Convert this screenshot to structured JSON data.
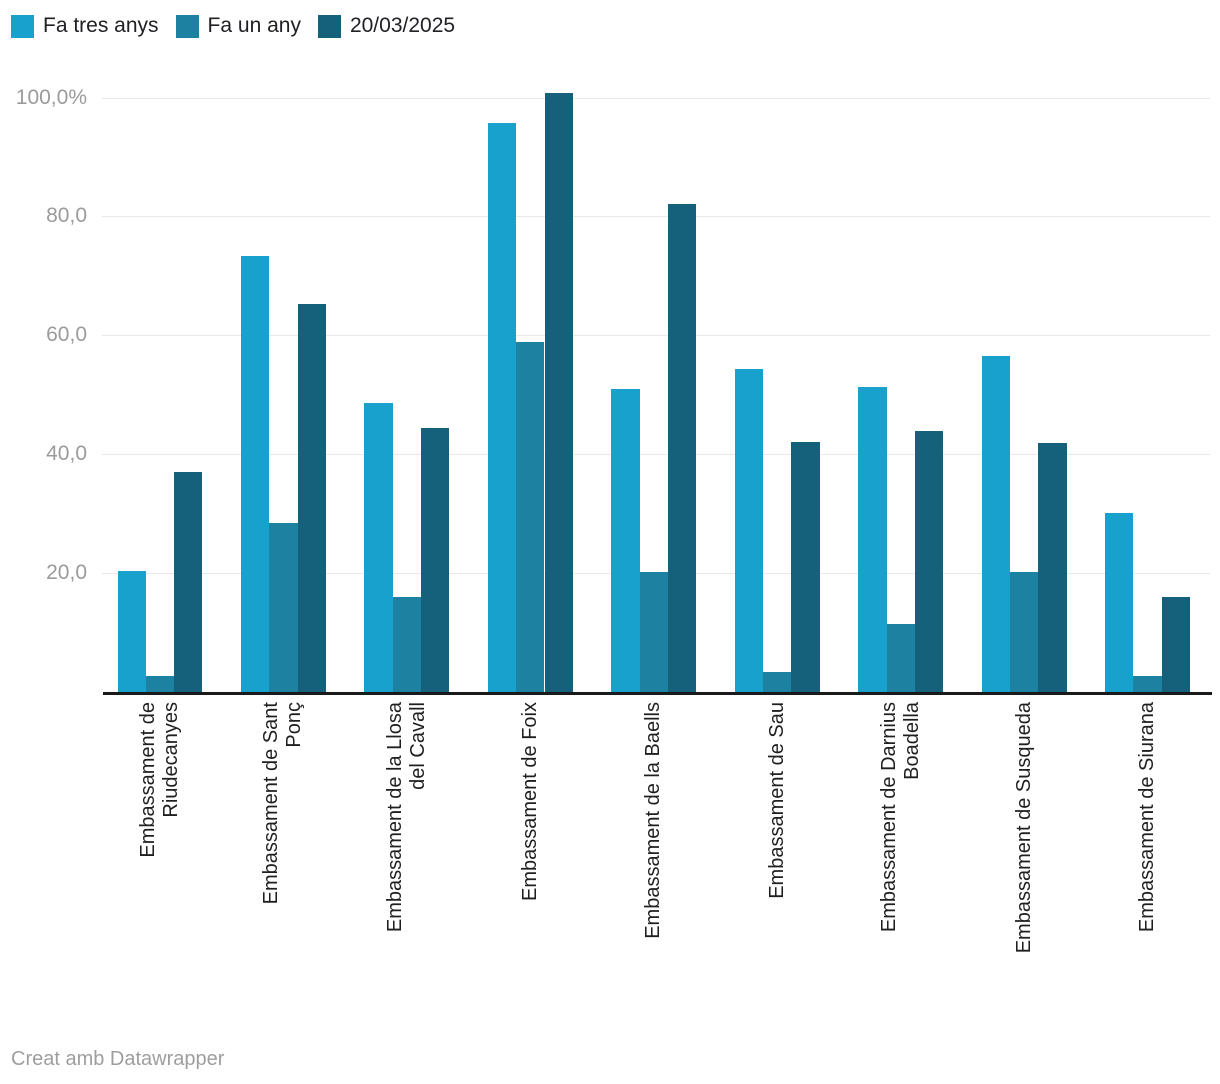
{
  "legend": {
    "items": [
      {
        "label": "Fa tres anys",
        "color": "#18a1cd"
      },
      {
        "label": "Fa un any",
        "color": "#1d81a2"
      },
      {
        "label": "20/03/2025",
        "color": "#15607a"
      }
    ]
  },
  "y_axis": {
    "ticks": [
      {
        "label": "100,0%",
        "value": 100
      },
      {
        "label": "80,0",
        "value": 80
      },
      {
        "label": "60,0",
        "value": 60
      },
      {
        "label": "40,0",
        "value": 40
      },
      {
        "label": "20,0",
        "value": 20
      }
    ]
  },
  "footer": {
    "text": "Creat amb Datawrapper"
  },
  "chart_data": {
    "type": "bar",
    "title": "",
    "xlabel": "",
    "ylabel": "",
    "unit": "%",
    "grid": true,
    "legend_position": "top-left",
    "ylim": [
      0,
      105
    ],
    "categories": [
      "Embassament de Riudecanyes",
      "Embassament de Sant Ponç",
      "Embassament de la Llosa del Cavall",
      "Embassament de Foix",
      "Embassament de la Baells",
      "Embassament de Sau",
      "Embassament de Darnius Boadella",
      "Embassament de Susqueda",
      "Embassament de Siurana"
    ],
    "category_lines": [
      [
        "Embassament de",
        "Riudecanyes"
      ],
      [
        "Embassament de Sant",
        "Ponç"
      ],
      [
        "Embassament de la Llosa",
        "del Cavall"
      ],
      [
        "Embassament de Foix"
      ],
      [
        "Embassament de la Baells"
      ],
      [
        "Embassament de Sau"
      ],
      [
        "Embassament de Darnius",
        "Boadella"
      ],
      [
        "Embassament de Susqueda"
      ],
      [
        "Embassament de Siurana"
      ]
    ],
    "series": [
      {
        "name": "Fa tres anys",
        "color": "#18a1cd",
        "values": [
          20.3,
          73.3,
          48.6,
          95.8,
          51.0,
          54.3,
          51.3,
          56.5,
          30.1
        ]
      },
      {
        "name": "Fa un any",
        "color": "#1d81a2",
        "values": [
          2.7,
          28.4,
          16.0,
          58.9,
          20.2,
          3.4,
          11.4,
          20.2,
          2.7
        ]
      },
      {
        "name": "20/03/2025",
        "color": "#15607a",
        "values": [
          37.0,
          65.3,
          44.4,
          100.8,
          82.1,
          42.1,
          43.9,
          41.9,
          16.0
        ]
      }
    ]
  }
}
